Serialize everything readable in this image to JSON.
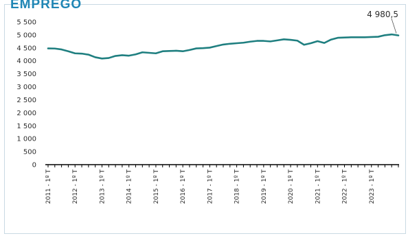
{
  "header": {
    "cut_text": "EMPREGO"
  },
  "chart_data": {
    "type": "line",
    "title": "",
    "xlabel": "",
    "ylabel": "",
    "ylim": [
      0,
      5500
    ],
    "yticks": [
      0,
      500,
      1000,
      1500,
      2000,
      2500,
      3000,
      3500,
      4000,
      4500,
      5000,
      5500
    ],
    "ytick_labels": [
      "0",
      "500",
      "1 000",
      "1 500",
      "2 000",
      "2 500",
      "3 000",
      "3 500",
      "4 000",
      "4 500",
      "5 000",
      "5 500"
    ],
    "x_labels_shown": [
      "2011 - 1º T",
      "2012 - 1º T",
      "2013 - 1º T",
      "2014 - 1º T",
      "2015 - 1º T",
      "2016 - 1º T",
      "2017 - 1º T",
      "2018 - 1º T",
      "2019 - 1º T",
      "2020 - 1º T",
      "2021 - 1º T",
      "2022 - 1º T",
      "2023 - 1º T"
    ],
    "grid": false,
    "line_color": "#1f7f80",
    "series": [
      {
        "values": [
          4480,
          4475,
          4440,
          4370,
          4290,
          4280,
          4240,
          4140,
          4090,
          4110,
          4190,
          4220,
          4200,
          4250,
          4330,
          4310,
          4290,
          4370,
          4380,
          4390,
          4370,
          4420,
          4480,
          4490,
          4510,
          4570,
          4630,
          4660,
          4680,
          4700,
          4740,
          4770,
          4770,
          4750,
          4790,
          4830,
          4810,
          4780,
          4620,
          4680,
          4760,
          4690,
          4820,
          4890,
          4900,
          4910,
          4910,
          4910,
          4920,
          4930,
          4990,
          5020,
          4980.5
        ]
      }
    ],
    "annotation": {
      "text": "4 980,5",
      "value": 4980.5
    }
  }
}
